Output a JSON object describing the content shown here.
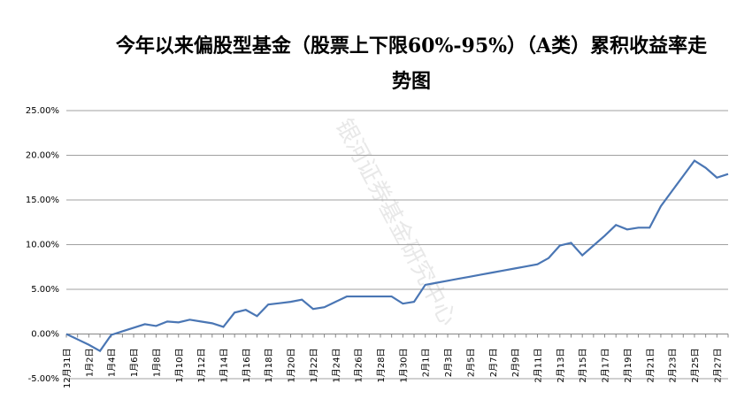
{
  "chart_data": {
    "type": "line",
    "title": "今年以来偏股型基金（股票上下限60%-95%）（A类）累积收益率走势图",
    "watermark": "银河证券基金研究中心",
    "categories": [
      "12月31日",
      null,
      "1月2日",
      null,
      "1月4日",
      null,
      "1月6日",
      null,
      "1月8日",
      null,
      "1月10日",
      null,
      "1月12日",
      null,
      "1月14日",
      null,
      "1月16日",
      null,
      "1月18日",
      null,
      "1月20日",
      null,
      "1月22日",
      null,
      "1月24日",
      null,
      "1月26日",
      null,
      "1月28日",
      null,
      "1月30日",
      null,
      "2月1日",
      null,
      "2月3日",
      null,
      "2月5日",
      null,
      "2月7日",
      null,
      "2月9日",
      null,
      "2月11日",
      null,
      "2月13日",
      null,
      "2月15日",
      null,
      "2月17日",
      null,
      "2月19日",
      null,
      "2月21日",
      null,
      "2月23日",
      null,
      "2月25日",
      null,
      "2月27日",
      null
    ],
    "series": [
      {
        "name": "累积收益率",
        "color": "#4a76b4",
        "values": [
          0,
          -0.6,
          -1.2,
          -1.9,
          -0.1,
          0.3,
          0.7,
          1.1,
          0.9,
          1.4,
          1.3,
          1.6,
          1.4,
          1.2,
          0.8,
          2.4,
          2.7,
          2.0,
          3.3,
          3.45,
          3.6,
          3.85,
          2.8,
          3.0,
          3.6,
          4.2,
          4.2,
          4.2,
          4.2,
          4.2,
          3.4,
          3.6,
          5.5,
          5.73,
          5.96,
          6.19,
          6.42,
          6.65,
          6.88,
          7.11,
          7.34,
          7.57,
          7.8,
          8.5,
          9.9,
          10.2,
          8.8,
          9.9,
          11.0,
          12.2,
          11.7,
          11.9,
          11.9,
          14.3,
          16.0,
          17.7,
          19.4,
          18.6,
          17.5,
          17.9
        ]
      }
    ],
    "ylim": [
      -5,
      25
    ],
    "yticks": [
      {
        "value": -5,
        "label": "-5.00%"
      },
      {
        "value": 0,
        "label": "0.00%"
      },
      {
        "value": 5,
        "label": "5.00%"
      },
      {
        "value": 10,
        "label": "10.00%"
      },
      {
        "value": 15,
        "label": "15.00%"
      },
      {
        "value": 20,
        "label": "20.00%"
      },
      {
        "value": 25,
        "label": "25.00%"
      }
    ],
    "grid": true
  }
}
